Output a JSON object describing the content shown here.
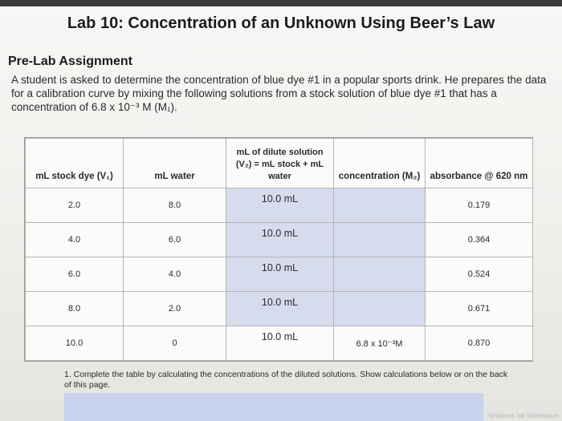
{
  "document": {
    "title": "Lab 10: Concentration of an Unknown Using Beer’s Law",
    "section": "Pre-Lab Assignment",
    "paragraph": "A student is asked to determine the concentration of blue dye #1 in a popular sports drink. He prepares the data for a calibration curve by mixing the following solutions from a stock solution of blue dye #1 that has a concentration of 6.8 x 10⁻³ M (M₁).",
    "question": "1. Complete the table by calculating the concentrations of the diluted solutions. Show calculations below or on the back of this page.",
    "watermark": "Windows Ink Workspace"
  },
  "table": {
    "headers": [
      "mL stock dye (V₁)",
      "mL water",
      "mL of dilute solution (V₂) = mL stock + mL water",
      "concentration (M₂)",
      "absorbance @ 620 nm"
    ],
    "rows": [
      [
        "2.0",
        "8.0",
        "10.0 mL",
        "",
        "0.179"
      ],
      [
        "4.0",
        "6.0",
        "10.0 mL",
        "",
        "0.364"
      ],
      [
        "6.0",
        "4.0",
        "10.0 mL",
        "",
        "0.524"
      ],
      [
        "8.0",
        "2.0",
        "10.0 mL",
        "",
        "0.671"
      ],
      [
        "10.0",
        "0",
        "10.0 mL",
        "6.8 x 10⁻³M",
        "0.870"
      ]
    ]
  },
  "colors": {
    "answer_cell_fill": "#d6dcee",
    "answer_box_fill": "#c9d2ec"
  }
}
